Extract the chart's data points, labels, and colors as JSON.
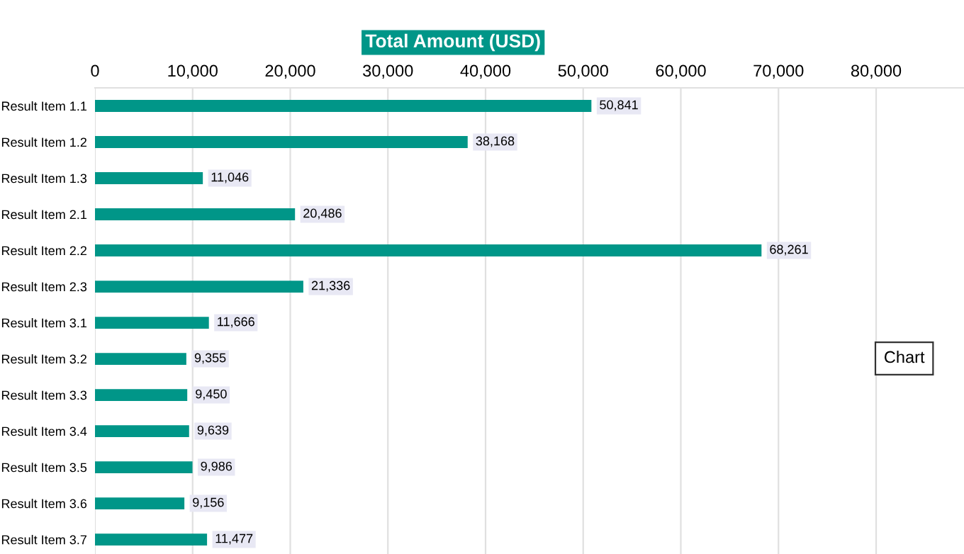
{
  "chart_data": {
    "type": "bar",
    "orientation": "horizontal",
    "xlabel": "Total Amount (USD)",
    "categories": [
      "Result Item 1.1",
      "Result Item 1.2",
      "Result Item 1.3",
      "Result Item 2.1",
      "Result Item 2.2",
      "Result Item 2.3",
      "Result Item 3.1",
      "Result Item 3.2",
      "Result Item 3.3",
      "Result Item 3.4",
      "Result Item 3.5",
      "Result Item 3.6",
      "Result Item 3.7"
    ],
    "values": [
      50841,
      38168,
      11046,
      20486,
      68261,
      21336,
      11666,
      9355,
      9450,
      9639,
      9986,
      9156,
      11477
    ],
    "color": "#009688",
    "xlim": [
      0,
      89000
    ],
    "xticks": [
      {
        "value": 0,
        "label": "0"
      },
      {
        "value": 10000,
        "label": "10,000"
      },
      {
        "value": 20000,
        "label": "20,000"
      },
      {
        "value": 30000,
        "label": "30,000"
      },
      {
        "value": 40000,
        "label": "40,000"
      },
      {
        "value": 50000,
        "label": "50,000"
      },
      {
        "value": 60000,
        "label": "60,000"
      },
      {
        "value": 70000,
        "label": "70,000"
      },
      {
        "value": 80000,
        "label": "80,000"
      }
    ],
    "value_labels": [
      "50,841",
      "38,168",
      "11,046",
      "20,486",
      "68,261",
      "21,336",
      "11,666",
      "9,355",
      "9,450",
      "9,639",
      "9,986",
      "9,156",
      "11,477"
    ],
    "grid": "x",
    "legend": false,
    "annotations": [
      "Chart"
    ]
  }
}
